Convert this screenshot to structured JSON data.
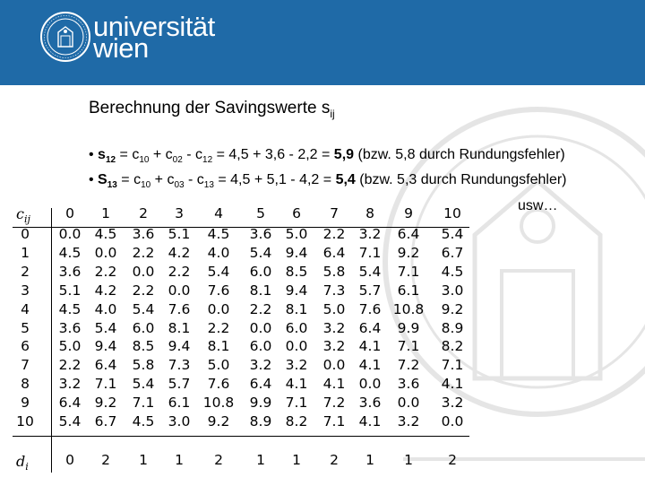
{
  "header": {
    "brand_line1": "universität",
    "brand_line2": "wien"
  },
  "title": {
    "text": "Berechnung der Savingswerte s",
    "sub": "ij"
  },
  "bullets": [
    {
      "prefix": "• ",
      "s": "s",
      "s_sub": "12",
      "expr": " = c",
      "a": "10",
      "p1": " + c",
      "b": "02",
      "p2": " - c",
      "c": "12",
      "rest": " = 4,5 + 3,6 - 2,2 = ",
      "result": "5,9",
      "note": " (bzw. 5,8 durch Rundungsfehler)"
    },
    {
      "prefix": "• ",
      "s": "S",
      "s_sub": "13",
      "expr": " = c",
      "a": "10",
      "p1": " + c",
      "b": "03",
      "p2": " - c",
      "c": "13",
      "rest": " = 4,5 + 5,1 - 4,2 = ",
      "result": "5,4",
      "note": " (bzw. 5,3 durch Rundungsfehler)"
    }
  ],
  "usw": "usw…",
  "matrix": {
    "corner": "cij",
    "d_label": "di",
    "cols": [
      "0",
      "1",
      "2",
      "3",
      "4",
      "5",
      "6",
      "7",
      "8",
      "9",
      "10"
    ],
    "rows": [
      [
        "0",
        "0.0",
        "4.5",
        "3.6",
        "5.1",
        "4.5",
        "3.6",
        "5.0",
        "2.2",
        "3.2",
        "6.4",
        "5.4"
      ],
      [
        "1",
        "4.5",
        "0.0",
        "2.2",
        "4.2",
        "4.0",
        "5.4",
        "9.4",
        "6.4",
        "7.1",
        "9.2",
        "6.7"
      ],
      [
        "2",
        "3.6",
        "2.2",
        "0.0",
        "2.2",
        "5.4",
        "6.0",
        "8.5",
        "5.8",
        "5.4",
        "7.1",
        "4.5"
      ],
      [
        "3",
        "5.1",
        "4.2",
        "2.2",
        "0.0",
        "7.6",
        "8.1",
        "9.4",
        "7.3",
        "5.7",
        "6.1",
        "3.0"
      ],
      [
        "4",
        "4.5",
        "4.0",
        "5.4",
        "7.6",
        "0.0",
        "2.2",
        "8.1",
        "5.0",
        "7.6",
        "10.8",
        "9.2"
      ],
      [
        "5",
        "3.6",
        "5.4",
        "6.0",
        "8.1",
        "2.2",
        "0.0",
        "6.0",
        "3.2",
        "6.4",
        "9.9",
        "8.9"
      ],
      [
        "6",
        "5.0",
        "9.4",
        "8.5",
        "9.4",
        "8.1",
        "6.0",
        "0.0",
        "3.2",
        "4.1",
        "7.1",
        "8.2"
      ],
      [
        "7",
        "2.2",
        "6.4",
        "5.8",
        "7.3",
        "5.0",
        "3.2",
        "3.2",
        "0.0",
        "4.1",
        "7.2",
        "7.1"
      ],
      [
        "8",
        "3.2",
        "7.1",
        "5.4",
        "5.7",
        "7.6",
        "6.4",
        "4.1",
        "4.1",
        "0.0",
        "3.6",
        "4.1"
      ],
      [
        "9",
        "6.4",
        "9.2",
        "7.1",
        "6.1",
        "10.8",
        "9.9",
        "7.1",
        "7.2",
        "3.6",
        "0.0",
        "3.2"
      ],
      [
        "10",
        "5.4",
        "6.7",
        "4.5",
        "3.0",
        "9.2",
        "8.9",
        "8.2",
        "7.1",
        "4.1",
        "3.2",
        "0.0"
      ]
    ],
    "d": [
      "0",
      "2",
      "1",
      "1",
      "2",
      "1",
      "1",
      "2",
      "1",
      "1",
      "2"
    ]
  }
}
